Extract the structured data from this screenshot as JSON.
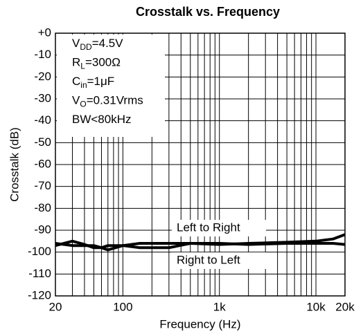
{
  "chart_data": {
    "type": "line",
    "title": "Crosstalk vs. Frequency",
    "x_label": "Frequency (Hz)",
    "y_label": "Crosstalk (dB)",
    "xscale": "log",
    "grid": true,
    "xlim": [
      20,
      20000
    ],
    "ylim": [
      -120,
      0
    ],
    "xticks": [
      20,
      100,
      {
        "value": 1000,
        "label": "1k"
      },
      {
        "value": 10000,
        "label": "10k"
      },
      {
        "value": 20000,
        "label": "20k"
      }
    ],
    "xminor": [
      30,
      40,
      50,
      60,
      70,
      80,
      90,
      200,
      300,
      400,
      500,
      600,
      700,
      800,
      900,
      2000,
      3000,
      4000,
      5000,
      6000,
      7000,
      8000,
      9000
    ],
    "yticks": [
      {
        "value": 0,
        "label": "+0"
      },
      -10,
      -20,
      -30,
      -40,
      -50,
      -60,
      -70,
      -80,
      -90,
      -100,
      -110,
      -120
    ],
    "x": [
      20,
      30,
      40,
      50,
      60,
      70,
      100,
      150,
      200,
      300,
      500,
      1000,
      2000,
      5000,
      10000,
      15000,
      20000
    ],
    "series": [
      {
        "name": "Left to Right",
        "color": "#000000",
        "values": [
          -97,
          -95,
          -96.5,
          -98,
          -98,
          -97,
          -97,
          -96,
          -96,
          -96,
          -96,
          -96.5,
          -96,
          -95.5,
          -95,
          -94,
          -92
        ]
      },
      {
        "name": "Right to Left",
        "color": "#000000",
        "values": [
          -96,
          -97,
          -97,
          -97,
          -98,
          -99,
          -97,
          -98,
          -98,
          -98,
          -96,
          -96,
          -96.5,
          -96,
          -96,
          -96,
          -96.5
        ]
      }
    ],
    "conditions": [
      {
        "main": "V",
        "sub": "DD",
        "rest": "=4.5V"
      },
      {
        "main": "R",
        "sub": "L",
        "rest": "=300Ω"
      },
      {
        "main": "C",
        "sub": "in",
        "rest": "=1μF"
      },
      {
        "main": "V",
        "sub": "O",
        "rest": "=0.31Vrms"
      },
      {
        "main": "BW<80kHz"
      }
    ]
  }
}
